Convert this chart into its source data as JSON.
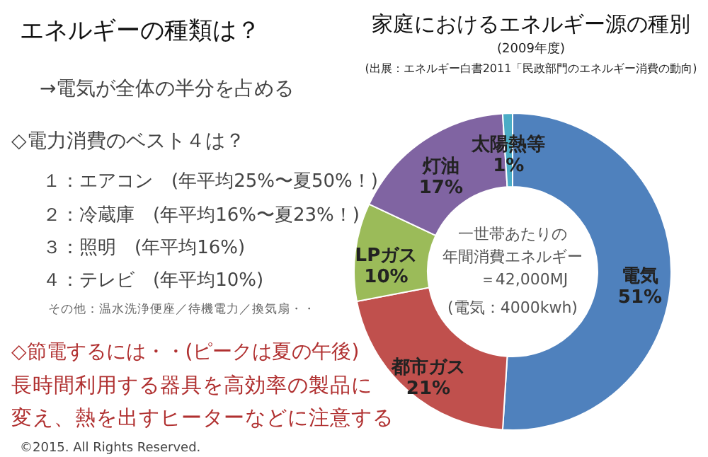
{
  "chart_data": {
    "type": "donut",
    "title": "家庭におけるエネルギー源の種別",
    "subtitle": "(2009年度)",
    "categories": [
      "電気",
      "都市ガス",
      "LPガス",
      "灯油",
      "太陽熱等"
    ],
    "values": [
      51,
      21,
      10,
      17,
      1
    ],
    "colors": [
      "#4f81bd",
      "#c0504d",
      "#9bbb59",
      "#8064a2",
      "#4bacc6"
    ],
    "value_labels": [
      "51%",
      "21%",
      "10%",
      "17%",
      "1%"
    ],
    "annotations": [
      "(出展：エネルギー白書2011「民政部門のエネルギー消費の動向)",
      "一世帯あたりの",
      "年間消費エネルギー",
      "＝42,000MJ",
      "(電気：4000kwh)",
      "エネルギーの種類は？",
      "→電気が全体の半分を占める",
      "◇電力消費のベスト４は？",
      "１：エアコン　(年平均25%〜夏50%！)",
      "２：冷蔵庫　(年平均16%〜夏23%！)",
      "３：照明　(年平均16%)",
      "４：テレビ　(年平均10%)",
      "その他：温水洗浄便座／待機電力／換気扇・・",
      "◇節電するには・・(ピークは夏の午後)",
      "長時間利用する器具を高効率の製品に",
      "変え、熱を出すヒーターなどに注意する",
      "©2015. All Rights Reserved."
    ]
  }
}
